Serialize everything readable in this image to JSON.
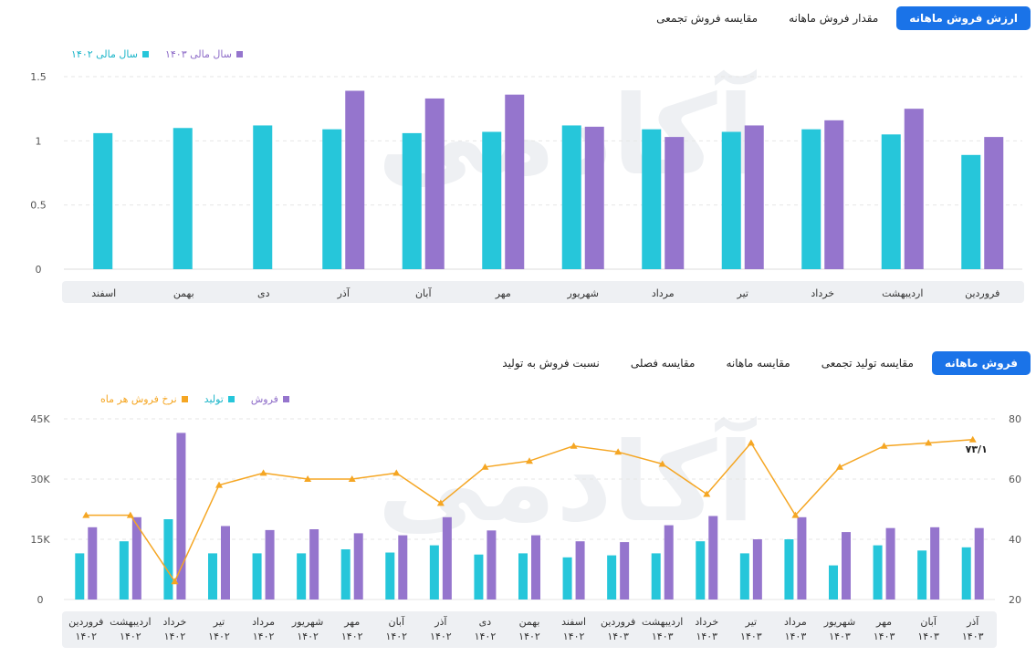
{
  "top_tabs": [
    "ارزش فروش ماهانه",
    "مقدار فروش ماهانه",
    "مقایسه فروش تجمعی"
  ],
  "bottom_tabs": [
    "فروش ماهانه",
    "مقایسه تولید تجمعی",
    "مقایسه ماهانه",
    "مقایسه فصلی",
    "نسبت فروش به تولید"
  ],
  "watermark": "آکادمی",
  "colors": {
    "teal": "#26c6da",
    "purple": "#9575cd",
    "orange": "#f5a623",
    "accent": "#1a73e8"
  },
  "chart_data": [
    {
      "type": "bar",
      "categories": [
        "فروردین",
        "اردیبهشت",
        "خرداد",
        "تیر",
        "مرداد",
        "شهریور",
        "مهر",
        "آبان",
        "آذر",
        "دی",
        "بهمن",
        "اسفند"
      ],
      "series": [
        {
          "name": "سال مالی ۱۴۰۲",
          "color": "#26c6da",
          "values": [
            0.89,
            1.05,
            1.09,
            1.07,
            1.09,
            1.12,
            1.07,
            1.06,
            1.09,
            1.12,
            1.1,
            1.06
          ]
        },
        {
          "name": "سال مالی ۱۴۰۳",
          "color": "#9575cd",
          "values": [
            1.03,
            1.25,
            1.16,
            1.12,
            1.03,
            1.11,
            1.36,
            1.33,
            1.39,
            null,
            null,
            null
          ]
        }
      ],
      "yticks": [
        "0",
        "0.5",
        "1",
        "1.5"
      ],
      "ylim": [
        0,
        1.5
      ],
      "grid": true,
      "legend": "top-left"
    },
    {
      "type": "bar",
      "categories": [
        "فروردین ۱۴۰۲",
        "اردیبهشت ۱۴۰۲",
        "خرداد ۱۴۰۲",
        "تیر ۱۴۰۲",
        "مرداد ۱۴۰۲",
        "شهریور ۱۴۰۲",
        "مهر ۱۴۰۲",
        "آبان ۱۴۰۲",
        "آذر ۱۴۰۲",
        "دی ۱۴۰۲",
        "بهمن ۱۴۰۲",
        "اسفند ۱۴۰۲",
        "فروردین ۱۴۰۳",
        "اردیبهشت ۱۴۰۳",
        "خرداد ۱۴۰۳",
        "تیر ۱۴۰۳",
        "مرداد ۱۴۰۳",
        "شهریور ۱۴۰۳",
        "مهر ۱۴۰۳",
        "آبان ۱۴۰۳",
        "آذر ۱۴۰۳"
      ],
      "series": [
        {
          "name": "فروش",
          "color": "#9575cd",
          "axis": "left",
          "values": [
            18000,
            20500,
            41500,
            18300,
            17300,
            17500,
            16500,
            16000,
            20500,
            17200,
            16000,
            14500,
            14300,
            18500,
            20800,
            15000,
            20500,
            16800,
            17800,
            18000,
            17800
          ]
        },
        {
          "name": "تولید",
          "color": "#26c6da",
          "axis": "left",
          "values": [
            11500,
            14500,
            20000,
            11500,
            11500,
            11500,
            12500,
            11700,
            13500,
            11200,
            11500,
            10500,
            11000,
            11500,
            14500,
            11500,
            15000,
            8500,
            13500,
            12200,
            13000
          ]
        },
        {
          "name": "نرخ فروش هر ماه",
          "color": "#f5a623",
          "axis": "right",
          "type": "line",
          "values": [
            48,
            48,
            26,
            58,
            62,
            60,
            60,
            62,
            52,
            64,
            66,
            71,
            69,
            65,
            55,
            72,
            48,
            64,
            71,
            72,
            73.1
          ]
        }
      ],
      "yticks_left": [
        "0",
        "15K",
        "30K",
        "45K"
      ],
      "ylim_left": [
        0,
        45000
      ],
      "yticks_right": [
        "20",
        "40",
        "60",
        "80"
      ],
      "ylim_right": [
        20,
        80
      ],
      "last_label": "۷۳/۱",
      "grid": true,
      "legend": "top-left"
    }
  ]
}
